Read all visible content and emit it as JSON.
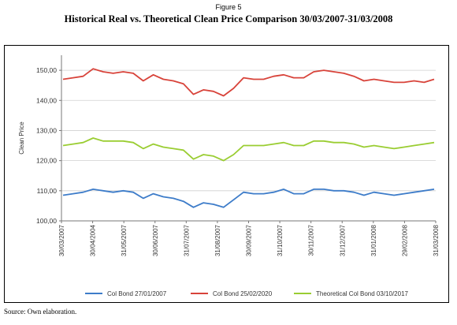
{
  "figure_label": "Figure 5",
  "title": "Historical Real vs. Theoretical Clean Price Comparison 30/03/2007-31/03/2008",
  "source": "Source: Own elaboration.",
  "chart_data": {
    "type": "line",
    "ylabel": "Clean Price",
    "xlabel": "",
    "ylim": [
      100,
      155
    ],
    "yticks": [
      100,
      110,
      120,
      130,
      140,
      150
    ],
    "ytick_labels": [
      "100,00",
      "110,00",
      "120,00",
      "130,00",
      "140,00",
      "150,00"
    ],
    "x_tick_labels": [
      "30/03/2007",
      "30/04/2004",
      "31/05/2007",
      "30/06/2007",
      "31/07/2007",
      "31/08/2007",
      "30/09/2007",
      "31/10/2007",
      "30/11/2007",
      "31/12/2007",
      "31/01/2008",
      "29/02/2008",
      "31/03/2008"
    ],
    "grid": true,
    "legend_position": "bottom",
    "series": [
      {
        "name": "Col Bond 27/01/2007",
        "color": "#3d7cc9",
        "values": [
          108.5,
          109.0,
          109.5,
          110.5,
          110.0,
          109.5,
          110.0,
          109.5,
          107.5,
          109.0,
          108.0,
          107.5,
          106.5,
          104.5,
          106.0,
          105.5,
          104.5,
          107.0,
          109.5,
          109.0,
          109.0,
          109.5,
          110.5,
          109.0,
          109.0,
          110.5,
          110.5,
          110.0,
          110.0,
          109.5,
          108.5,
          109.5,
          109.0,
          108.5,
          109.0,
          109.5,
          110.0,
          110.5
        ]
      },
      {
        "name": "Col Bond 25/02/2020",
        "color": "#d8433a",
        "values": [
          147.0,
          147.5,
          148.0,
          150.5,
          149.5,
          149.0,
          149.5,
          149.0,
          146.5,
          148.5,
          147.0,
          146.5,
          145.5,
          142.0,
          143.5,
          143.0,
          141.5,
          144.0,
          147.5,
          147.0,
          147.0,
          148.0,
          148.5,
          147.5,
          147.5,
          149.5,
          150.0,
          149.5,
          149.0,
          148.0,
          146.5,
          147.0,
          146.5,
          146.0,
          146.0,
          146.5,
          146.0,
          147.0
        ]
      },
      {
        "name": "Theoretical Col Bond 03/10/2017",
        "color": "#9acd32",
        "values": [
          125.0,
          125.5,
          126.0,
          127.5,
          126.5,
          126.5,
          126.5,
          126.0,
          124.0,
          125.5,
          124.5,
          124.0,
          123.5,
          120.5,
          122.0,
          121.5,
          120.0,
          122.0,
          125.0,
          125.0,
          125.0,
          125.5,
          126.0,
          125.0,
          125.0,
          126.5,
          126.5,
          126.0,
          126.0,
          125.5,
          124.5,
          125.0,
          124.5,
          124.0,
          124.5,
          125.0,
          125.5,
          126.0
        ]
      }
    ]
  }
}
